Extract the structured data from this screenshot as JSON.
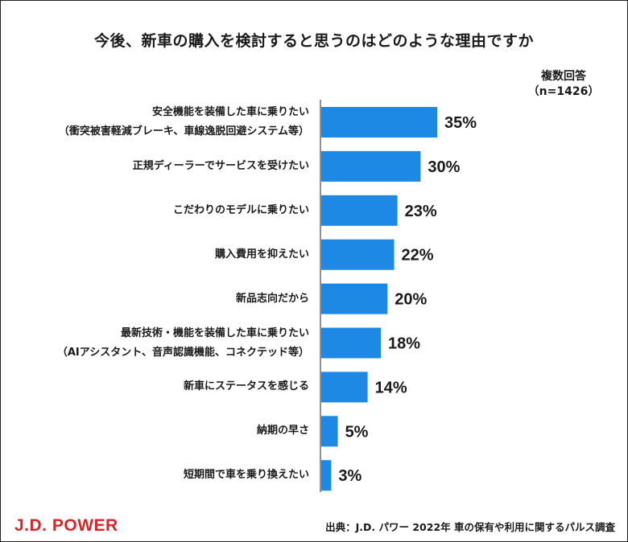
{
  "title": "今後、新車の購入を検討すると思うのはどのような理由ですか",
  "note": {
    "line1": "複数回答",
    "line2": "（n=1426）"
  },
  "chart_data": {
    "type": "bar",
    "orientation": "horizontal",
    "categories": [
      [
        "安全機能を装備した車に乗りたい",
        "（衝突被害軽減ブレーキ、車線逸脱回避システム等）"
      ],
      [
        "正規ディーラーでサービスを受けたい"
      ],
      [
        "こだわりのモデルに乗りたい"
      ],
      [
        "購入費用を抑えたい"
      ],
      [
        "新品志向だから"
      ],
      [
        "最新技術・機能を装備した車に乗りたい",
        "（AIアシスタント、音声認識機能、コネクテッド等）"
      ],
      [
        "新車にステータスを感じる"
      ],
      [
        "納期の早さ"
      ],
      [
        "短期間で車を乗り換えたい"
      ]
    ],
    "values": [
      35,
      30,
      23,
      22,
      20,
      18,
      14,
      5,
      3
    ],
    "data_labels": [
      "35%",
      "30%",
      "23%",
      "22%",
      "20%",
      "18%",
      "14%",
      "5%",
      "3%"
    ],
    "unit": "%",
    "xlim": [
      0,
      40
    ],
    "bar_color": "#1e88e5",
    "grid": false
  },
  "footer": {
    "logo": "J.D. POWER",
    "source": "出典：J.D. パワー 2022年 車の保有や利用に関するパルス調査"
  }
}
